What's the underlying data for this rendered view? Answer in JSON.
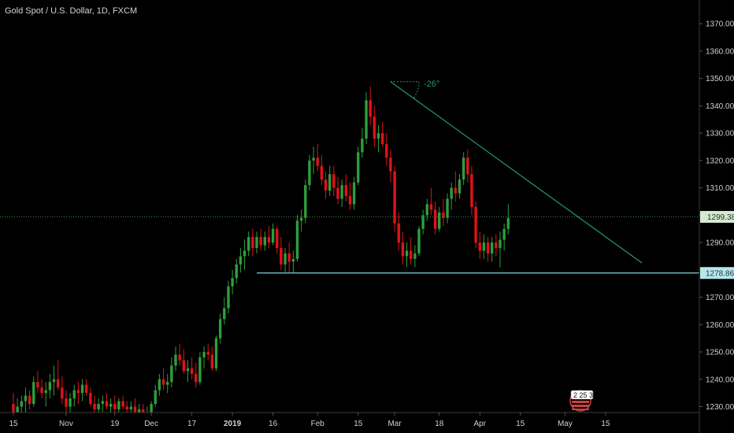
{
  "header": {
    "title": "Gold Spot / U.S. Dollar, 1D, FXCM"
  },
  "colors": {
    "background": "#000000",
    "up": "#2e9e3b",
    "down": "#e0121b",
    "trendline": "#1f9a78",
    "support": "#7fd3d8",
    "price_line": "#3c8a38",
    "price_label_bg": "#d7e8d2",
    "support_label_bg": "#b9e6ea"
  },
  "annotations": {
    "angle_label": "-26°",
    "current_price_label": "1299.38",
    "support_label": "1278.86",
    "news_badge_text": "2 25 3"
  },
  "chart_data": {
    "type": "candlestick",
    "title": "Gold Spot / U.S. Dollar, 1D, FXCM",
    "ylim": [
      1228,
      1378
    ],
    "y_ticks": [
      1230,
      1240,
      1250,
      1260,
      1270,
      1280,
      1290,
      1300,
      1310,
      1320,
      1330,
      1340,
      1350,
      1360,
      1370
    ],
    "y_tick_labels": [
      "1230.00",
      "1240.00",
      "1250.00",
      "1260.00",
      "1270.00",
      "1280.00",
      "1290.00",
      "1300.00",
      "1310.00",
      "1320.00",
      "1330.00",
      "1340.00",
      "1350.00",
      "1360.00",
      "1370.00"
    ],
    "x_ticks": [
      {
        "label": "15",
        "index": 0,
        "bold": false
      },
      {
        "label": "Nov",
        "index": 13,
        "bold": false
      },
      {
        "label": "19",
        "index": 25,
        "bold": false
      },
      {
        "label": "Dec",
        "index": 34,
        "bold": false
      },
      {
        "label": "17",
        "index": 44,
        "bold": false
      },
      {
        "label": "2019",
        "index": 54,
        "bold": true
      },
      {
        "label": "16",
        "index": 64,
        "bold": false
      },
      {
        "label": "Feb",
        "index": 75,
        "bold": false
      },
      {
        "label": "15",
        "index": 85,
        "bold": false
      },
      {
        "label": "Mar",
        "index": 94,
        "bold": false
      },
      {
        "label": "18",
        "index": 105,
        "bold": false
      },
      {
        "label": "Apr",
        "index": 115,
        "bold": false
      },
      {
        "label": "15",
        "index": 125,
        "bold": false
      },
      {
        "label": "May",
        "index": 136,
        "bold": false
      },
      {
        "label": "15",
        "index": 146,
        "bold": false
      }
    ],
    "candles": [
      [
        1231,
        1235,
        1227,
        1228
      ],
      [
        1228,
        1233,
        1225,
        1230
      ],
      [
        1230,
        1234,
        1226,
        1232
      ],
      [
        1232,
        1237,
        1228,
        1234
      ],
      [
        1234,
        1236,
        1229,
        1231
      ],
      [
        1231,
        1241,
        1230,
        1239
      ],
      [
        1239,
        1243,
        1235,
        1237
      ],
      [
        1237,
        1240,
        1233,
        1235
      ],
      [
        1235,
        1239,
        1230,
        1236
      ],
      [
        1236,
        1242,
        1233,
        1239
      ],
      [
        1239,
        1245,
        1234,
        1240
      ],
      [
        1240,
        1247,
        1236,
        1237
      ],
      [
        1237,
        1241,
        1231,
        1233
      ],
      [
        1233,
        1236,
        1228,
        1230
      ],
      [
        1230,
        1235,
        1227,
        1233
      ],
      [
        1233,
        1238,
        1230,
        1236
      ],
      [
        1236,
        1239,
        1231,
        1235
      ],
      [
        1235,
        1240,
        1232,
        1238
      ],
      [
        1238,
        1240,
        1234,
        1235
      ],
      [
        1235,
        1237,
        1230,
        1231
      ],
      [
        1231,
        1234,
        1227,
        1229
      ],
      [
        1229,
        1233,
        1226,
        1231
      ],
      [
        1231,
        1234,
        1228,
        1232
      ],
      [
        1232,
        1235,
        1229,
        1230
      ],
      [
        1230,
        1233,
        1227,
        1231
      ],
      [
        1231,
        1234,
        1228,
        1229
      ],
      [
        1229,
        1233,
        1226,
        1232
      ],
      [
        1232,
        1234,
        1229,
        1230
      ],
      [
        1230,
        1232,
        1227,
        1229
      ],
      [
        1229,
        1232,
        1226,
        1230
      ],
      [
        1230,
        1233,
        1227,
        1228
      ],
      [
        1228,
        1231,
        1225,
        1229
      ],
      [
        1229,
        1231,
        1226,
        1227
      ],
      [
        1227,
        1230,
        1225,
        1228
      ],
      [
        1228,
        1232,
        1226,
        1231
      ],
      [
        1231,
        1238,
        1230,
        1236
      ],
      [
        1236,
        1242,
        1234,
        1240
      ],
      [
        1240,
        1244,
        1236,
        1238
      ],
      [
        1238,
        1242,
        1235,
        1239
      ],
      [
        1239,
        1248,
        1237,
        1245
      ],
      [
        1245,
        1252,
        1243,
        1249
      ],
      [
        1249,
        1253,
        1245,
        1247
      ],
      [
        1247,
        1251,
        1242,
        1243
      ],
      [
        1243,
        1247,
        1239,
        1244
      ],
      [
        1244,
        1248,
        1240,
        1242
      ],
      [
        1242,
        1246,
        1237,
        1239
      ],
      [
        1239,
        1250,
        1238,
        1248
      ],
      [
        1248,
        1252,
        1244,
        1250
      ],
      [
        1250,
        1253,
        1247,
        1249
      ],
      [
        1249,
        1252,
        1243,
        1244
      ],
      [
        1244,
        1256,
        1243,
        1255
      ],
      [
        1255,
        1264,
        1253,
        1262
      ],
      [
        1262,
        1270,
        1260,
        1266
      ],
      [
        1266,
        1276,
        1264,
        1274
      ],
      [
        1274,
        1280,
        1271,
        1277
      ],
      [
        1277,
        1284,
        1275,
        1282
      ],
      [
        1282,
        1288,
        1279,
        1285
      ],
      [
        1285,
        1291,
        1280,
        1287
      ],
      [
        1287,
        1294,
        1285,
        1292
      ],
      [
        1292,
        1295,
        1285,
        1288
      ],
      [
        1288,
        1294,
        1286,
        1292
      ],
      [
        1292,
        1295,
        1287,
        1289
      ],
      [
        1289,
        1294,
        1287,
        1292
      ],
      [
        1292,
        1296,
        1288,
        1290
      ],
      [
        1290,
        1297,
        1289,
        1295
      ],
      [
        1295,
        1296,
        1286,
        1288
      ],
      [
        1288,
        1292,
        1280,
        1282
      ],
      [
        1282,
        1288,
        1279,
        1286
      ],
      [
        1286,
        1290,
        1279,
        1283
      ],
      [
        1283,
        1287,
        1279,
        1284
      ],
      [
        1284,
        1300,
        1283,
        1298
      ],
      [
        1298,
        1302,
        1294,
        1299
      ],
      [
        1299,
        1313,
        1297,
        1311
      ],
      [
        1311,
        1322,
        1309,
        1320
      ],
      [
        1320,
        1325,
        1315,
        1321
      ],
      [
        1321,
        1326,
        1316,
        1318
      ],
      [
        1318,
        1322,
        1311,
        1313
      ],
      [
        1313,
        1316,
        1306,
        1309
      ],
      [
        1309,
        1318,
        1307,
        1315
      ],
      [
        1315,
        1318,
        1307,
        1310
      ],
      [
        1310,
        1314,
        1304,
        1306
      ],
      [
        1306,
        1313,
        1303,
        1311
      ],
      [
        1311,
        1315,
        1305,
        1307
      ],
      [
        1307,
        1312,
        1302,
        1304
      ],
      [
        1304,
        1314,
        1302,
        1312
      ],
      [
        1312,
        1325,
        1311,
        1323
      ],
      [
        1323,
        1332,
        1321,
        1328
      ],
      [
        1328,
        1345,
        1326,
        1342
      ],
      [
        1342,
        1347,
        1333,
        1336
      ],
      [
        1336,
        1340,
        1325,
        1328
      ],
      [
        1328,
        1333,
        1323,
        1330
      ],
      [
        1330,
        1334,
        1325,
        1326
      ],
      [
        1326,
        1330,
        1318,
        1321
      ],
      [
        1321,
        1324,
        1312,
        1316
      ],
      [
        1316,
        1318,
        1294,
        1297
      ],
      [
        1297,
        1301,
        1287,
        1290
      ],
      [
        1290,
        1294,
        1282,
        1285
      ],
      [
        1285,
        1290,
        1281,
        1287
      ],
      [
        1287,
        1292,
        1282,
        1284
      ],
      [
        1284,
        1289,
        1281,
        1286
      ],
      [
        1286,
        1296,
        1285,
        1295
      ],
      [
        1295,
        1302,
        1293,
        1300
      ],
      [
        1300,
        1306,
        1298,
        1304
      ],
      [
        1304,
        1310,
        1300,
        1302
      ],
      [
        1302,
        1305,
        1293,
        1295
      ],
      [
        1295,
        1303,
        1294,
        1301
      ],
      [
        1301,
        1306,
        1296,
        1299
      ],
      [
        1299,
        1308,
        1297,
        1306
      ],
      [
        1306,
        1312,
        1302,
        1310
      ],
      [
        1310,
        1316,
        1305,
        1308
      ],
      [
        1308,
        1315,
        1306,
        1313
      ],
      [
        1313,
        1323,
        1311,
        1321
      ],
      [
        1321,
        1324,
        1312,
        1315
      ],
      [
        1315,
        1318,
        1300,
        1303
      ],
      [
        1303,
        1305,
        1288,
        1290
      ],
      [
        1290,
        1294,
        1284,
        1287
      ],
      [
        1287,
        1293,
        1284,
        1290
      ],
      [
        1290,
        1292,
        1283,
        1286
      ],
      [
        1286,
        1292,
        1283,
        1290
      ],
      [
        1290,
        1293,
        1285,
        1288
      ],
      [
        1288,
        1294,
        1281,
        1291
      ],
      [
        1291,
        1297,
        1287,
        1295
      ],
      [
        1295,
        1304,
        1293,
        1299
      ]
    ],
    "support_level": 1278.86,
    "current_price": 1299.38,
    "trendline": {
      "from": [
        93,
        1348.8
      ],
      "to": [
        155,
        1282.5
      ]
    },
    "angle_deg": -26
  }
}
